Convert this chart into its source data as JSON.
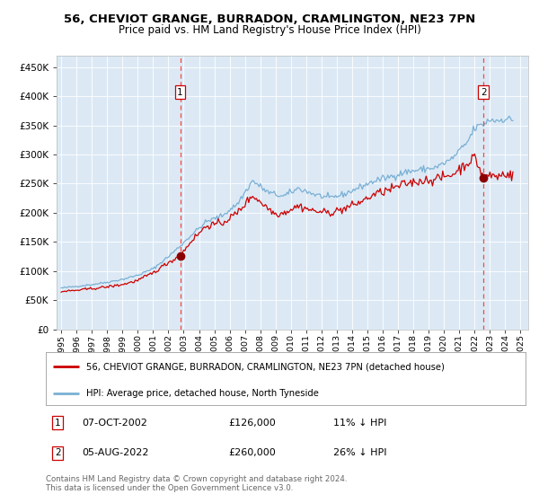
{
  "title": "56, CHEVIOT GRANGE, BURRADON, CRAMLINGTON, NE23 7PN",
  "subtitle": "Price paid vs. HM Land Registry's House Price Index (HPI)",
  "legend_line1": "56, CHEVIOT GRANGE, BURRADON, CRAMLINGTON, NE23 7PN (detached house)",
  "legend_line2": "HPI: Average price, detached house, North Tyneside",
  "annotation1_label": "1",
  "annotation1_date": "07-OCT-2002",
  "annotation1_price": "£126,000",
  "annotation1_note": "11% ↓ HPI",
  "annotation2_label": "2",
  "annotation2_date": "05-AUG-2022",
  "annotation2_price": "£260,000",
  "annotation2_note": "26% ↓ HPI",
  "vline1_x": 2002.77,
  "vline2_x": 2022.59,
  "dot1_y": 126000,
  "dot2_y": 260000,
  "footer1": "Contains HM Land Registry data © Crown copyright and database right 2024.",
  "footer2": "This data is licensed under the Open Government Licence v3.0.",
  "bg_color": "#dce9f5",
  "hpi_line_color": "#7ab0d4",
  "price_line_color": "#cc0000",
  "dot_color": "#8b0000",
  "vline_color": "#ff4444",
  "box_edge_color": "#cc0000",
  "ylim_min": 0,
  "ylim_max": 470000,
  "xlim_start": 1994.7,
  "xlim_end": 2025.5,
  "yticks": [
    0,
    50000,
    100000,
    150000,
    200000,
    250000,
    300000,
    350000,
    400000,
    450000
  ],
  "xticks": [
    1995,
    1996,
    1997,
    1998,
    1999,
    2000,
    2001,
    2002,
    2003,
    2004,
    2005,
    2006,
    2007,
    2008,
    2009,
    2010,
    2011,
    2012,
    2013,
    2014,
    2015,
    2016,
    2017,
    2018,
    2019,
    2020,
    2021,
    2022,
    2023,
    2024,
    2025
  ]
}
